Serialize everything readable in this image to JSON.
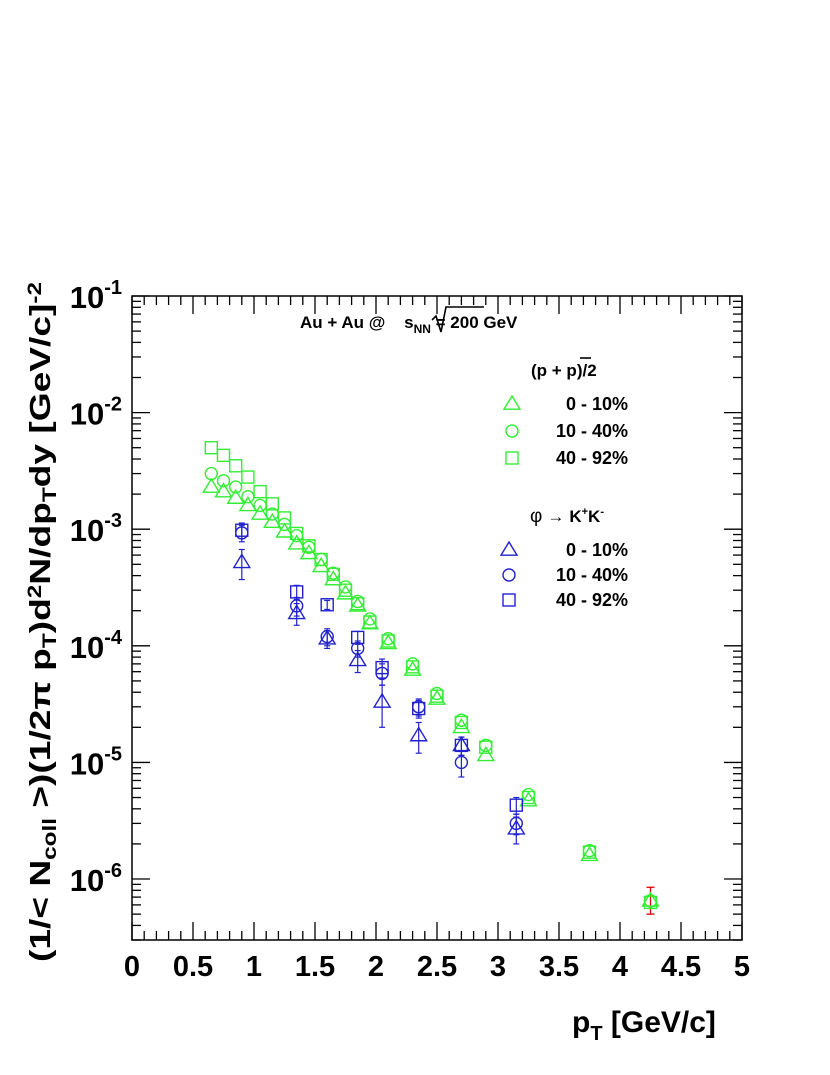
{
  "chart_data": {
    "type": "scatter",
    "title": "Au + Au @ √sNN = 200 GeV",
    "title_parts": {
      "prefix": "Au + Au @ ",
      "radical": "s",
      "sub": "NN",
      "suffix": " = 200 GeV"
    },
    "xlabel": {
      "main": "p",
      "sub": "T",
      "rest": " [GeV/c]"
    },
    "ylabel": "(1/< Ncoll >)(1/2π pT)d2N/dpTdy [GeV/c]-2",
    "ylabel_parts": [
      {
        "t": "(1/< N",
        "s": ""
      },
      {
        "t": "coll",
        "s": "sub"
      },
      {
        "t": " >)(1/2",
        "s": ""
      },
      {
        "t": "π",
        "s": ""
      },
      {
        "t": " p",
        "s": ""
      },
      {
        "t": "T",
        "s": "sub"
      },
      {
        "t": ")d",
        "s": ""
      },
      {
        "t": "2",
        "s": "sup"
      },
      {
        "t": "N/dp",
        "s": ""
      },
      {
        "t": "T",
        "s": "sub"
      },
      {
        "t": "dy [GeV/c]",
        "s": ""
      },
      {
        "t": "-2",
        "s": "sup"
      }
    ],
    "xlim": [
      0,
      5
    ],
    "ylim": [
      3e-07,
      0.1
    ],
    "yscale": "log",
    "xticks": [
      "0",
      "0.5",
      "1",
      "1.5",
      "2",
      "2.5",
      "3",
      "3.5",
      "4",
      "4.5",
      "5"
    ],
    "yticks": [
      {
        "base": "10",
        "exp": "-1"
      },
      {
        "base": "10",
        "exp": "-2"
      },
      {
        "base": "10",
        "exp": "-3"
      },
      {
        "base": "10",
        "exp": "-4"
      },
      {
        "base": "10",
        "exp": "-5"
      },
      {
        "base": "10",
        "exp": "-6"
      }
    ],
    "legend": {
      "placement": "top-right",
      "proton_header": "(p + p)/2",
      "proton_header_parts": {
        "open": "(p + ",
        "pbar": "p",
        "close": ")/2"
      },
      "phi_header": "φ → K+K-",
      "phi_header_parts": {
        "phi": "φ",
        "arrow": "→",
        "k1": "K",
        "k1sup": "+",
        "k2": "K",
        "k2sup": "-"
      },
      "entries": [
        "0 - 10%",
        "10 - 40%",
        "40 - 92%"
      ]
    },
    "colors": {
      "proton": "#33ee33",
      "phi": "#2222cc",
      "highlight_errorbar": "#dd0000",
      "axis": "#000000"
    },
    "series": [
      {
        "name": "0 - 10%",
        "group": "proton",
        "marker": "triangle",
        "x": [
          0.65,
          0.75,
          0.85,
          0.95,
          1.05,
          1.15,
          1.25,
          1.35,
          1.45,
          1.55,
          1.65,
          1.75,
          1.85,
          1.95,
          2.1,
          2.3,
          2.5,
          2.7,
          2.9,
          3.25,
          3.75,
          4.25
        ],
        "y": [
          0.0023,
          0.0021,
          0.00185,
          0.0016,
          0.00135,
          0.00115,
          0.00095,
          0.00075,
          0.00062,
          0.00048,
          0.00037,
          0.00028,
          0.00022,
          0.000155,
          0.000105,
          6.2e-05,
          3.5e-05,
          2e-05,
          1.15e-05,
          4.7e-06,
          1.6e-06,
          6.5e-07
        ]
      },
      {
        "name": "10 - 40%",
        "group": "proton",
        "marker": "circle",
        "x": [
          0.65,
          0.75,
          0.85,
          0.95,
          1.05,
          1.15,
          1.25,
          1.35,
          1.45,
          1.55,
          1.65,
          1.75,
          1.85,
          1.95,
          2.1,
          2.3,
          2.5,
          2.7,
          2.9,
          3.25,
          3.75,
          4.25
        ],
        "y": [
          0.003,
          0.0026,
          0.0023,
          0.0019,
          0.0016,
          0.00135,
          0.0011,
          0.00088,
          0.0007,
          0.00055,
          0.00042,
          0.00032,
          0.00024,
          0.00017,
          0.000115,
          7e-05,
          3.9e-05,
          2.3e-05,
          1.4e-05,
          5.3e-06,
          1.75e-06,
          6.5e-07
        ]
      },
      {
        "name": "40 - 92%",
        "group": "proton",
        "marker": "square",
        "x": [
          0.65,
          0.75,
          0.85,
          0.95,
          1.05,
          1.15,
          1.25,
          1.35,
          1.45,
          1.55,
          1.65,
          1.75,
          1.85,
          1.95,
          2.1,
          2.3,
          2.5,
          2.7,
          2.9,
          3.25,
          3.75,
          4.25
        ],
        "y": [
          0.005,
          0.0043,
          0.0035,
          0.0028,
          0.0021,
          0.00165,
          0.00125,
          0.00092,
          0.00072,
          0.00055,
          0.00041,
          0.0003,
          0.00023,
          0.00016,
          0.00011,
          6.6e-05,
          3.7e-05,
          2.2e-05,
          1.35e-05,
          5e-06,
          1.7e-06,
          6.3e-07
        ]
      },
      {
        "name": "0 - 10%",
        "group": "phi",
        "marker": "triangle",
        "x": [
          0.9,
          1.35,
          1.6,
          1.85,
          2.05,
          2.35,
          2.7,
          3.15
        ],
        "y": [
          0.00052,
          0.00019,
          0.000115,
          7.5e-05,
          3.3e-05,
          1.7e-05,
          1.4e-05,
          2.7e-06
        ],
        "yerr_low": [
          0.00015,
          4e-05,
          2e-05,
          1.6e-05,
          1.3e-05,
          5e-06,
          2.5e-06,
          7e-07
        ],
        "yerr_high": [
          0.00015,
          4e-05,
          2e-05,
          1.6e-05,
          1.3e-05,
          5e-06,
          2.5e-06,
          7e-07
        ]
      },
      {
        "name": "10 - 40%",
        "group": "phi",
        "marker": "circle",
        "x": [
          0.9,
          1.35,
          1.6,
          1.85,
          2.05,
          2.35,
          2.7,
          3.15
        ],
        "y": [
          0.00093,
          0.00022,
          0.00012,
          9.5e-05,
          5.8e-05,
          3e-05,
          1e-05,
          3e-06
        ],
        "yerr_low": [
          0.00015,
          4e-05,
          2e-05,
          1.5e-05,
          1.2e-05,
          5e-06,
          2.5e-06,
          6e-07
        ],
        "yerr_high": [
          0.00015,
          4e-05,
          2e-05,
          1.5e-05,
          1.2e-05,
          5e-06,
          2.5e-06,
          6e-07
        ]
      },
      {
        "name": "40 - 92%",
        "group": "phi",
        "marker": "square",
        "x": [
          0.9,
          1.35,
          1.6,
          1.85,
          2.05,
          2.35,
          2.7,
          3.15
        ],
        "y": [
          0.00098,
          0.00029,
          0.000225,
          0.000118,
          6.5e-05,
          2.9e-05,
          1.4e-05,
          4.3e-06
        ],
        "yerr_low": [
          0.00015,
          4e-05,
          2e-05,
          1.5e-05,
          1.2e-05,
          5e-06,
          2.5e-06,
          7e-07
        ],
        "yerr_high": [
          0.00015,
          4e-05,
          2e-05,
          1.5e-05,
          1.2e-05,
          5e-06,
          2.5e-06,
          7e-07
        ]
      }
    ],
    "red_errorbar": {
      "x": 4.25,
      "y_low": 5e-07,
      "y_high": 8.5e-07
    }
  }
}
